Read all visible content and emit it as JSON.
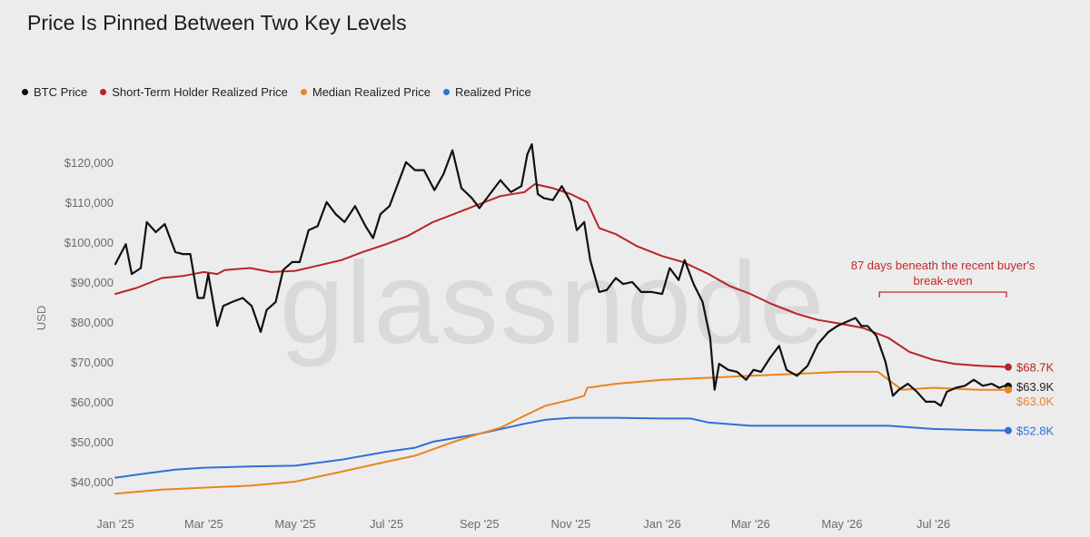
{
  "chart_data": {
    "type": "line",
    "title": "Price Is Pinned Between Two Key Levels",
    "ylabel": "USD",
    "xlabel": "",
    "ylim": [
      35000,
      127000
    ],
    "xlim": [
      "2025-01-01",
      "2026-08-20"
    ],
    "y_ticks": [
      40000,
      50000,
      60000,
      70000,
      80000,
      90000,
      100000,
      110000,
      120000
    ],
    "y_tick_labels": [
      "$40,000",
      "$50,000",
      "$60,000",
      "$70,000",
      "$80,000",
      "$90,000",
      "$100,000",
      "$110,000",
      "$120,000"
    ],
    "x_ticks": [
      {
        "date": "2025-01-01",
        "label": "Jan '25"
      },
      {
        "date": "2025-03-01",
        "label": "Mar '25"
      },
      {
        "date": "2025-05-01",
        "label": "May '25"
      },
      {
        "date": "2025-07-01",
        "label": "Jul '25"
      },
      {
        "date": "2025-09-01",
        "label": "Sep '25"
      },
      {
        "date": "2025-11-01",
        "label": "Nov '25"
      },
      {
        "date": "2026-01-01",
        "label": "Jan '26"
      },
      {
        "date": "2026-03-01",
        "label": "Mar '26"
      },
      {
        "date": "2026-05-01",
        "label": "May '26"
      },
      {
        "date": "2026-07-01",
        "label": "Jul '26"
      }
    ],
    "grid": false,
    "legend_position": "top-left",
    "series": [
      {
        "name": "BTC Price",
        "color": "#111111",
        "end_label": "$63.9K",
        "points": [
          [
            "2025-01-01",
            94500
          ],
          [
            "2025-01-08",
            99500
          ],
          [
            "2025-01-12",
            92000
          ],
          [
            "2025-01-18",
            93500
          ],
          [
            "2025-01-22",
            105000
          ],
          [
            "2025-01-28",
            102500
          ],
          [
            "2025-02-03",
            104500
          ],
          [
            "2025-02-10",
            97500
          ],
          [
            "2025-02-15",
            97000
          ],
          [
            "2025-02-20",
            97000
          ],
          [
            "2025-02-25",
            86000
          ],
          [
            "2025-03-01",
            86000
          ],
          [
            "2025-03-04",
            92000
          ],
          [
            "2025-03-10",
            79000
          ],
          [
            "2025-03-14",
            84000
          ],
          [
            "2025-03-20",
            85000
          ],
          [
            "2025-03-27",
            86000
          ],
          [
            "2025-04-02",
            84000
          ],
          [
            "2025-04-08",
            77500
          ],
          [
            "2025-04-12",
            83000
          ],
          [
            "2025-04-18",
            85000
          ],
          [
            "2025-04-23",
            93000
          ],
          [
            "2025-04-29",
            95000
          ],
          [
            "2025-05-04",
            95000
          ],
          [
            "2025-05-10",
            103000
          ],
          [
            "2025-05-16",
            104000
          ],
          [
            "2025-05-22",
            110000
          ],
          [
            "2025-05-28",
            107000
          ],
          [
            "2025-06-03",
            105000
          ],
          [
            "2025-06-10",
            109000
          ],
          [
            "2025-06-17",
            104000
          ],
          [
            "2025-06-22",
            101000
          ],
          [
            "2025-06-27",
            107000
          ],
          [
            "2025-07-03",
            109000
          ],
          [
            "2025-07-10",
            116000
          ],
          [
            "2025-07-14",
            120000
          ],
          [
            "2025-07-20",
            118000
          ],
          [
            "2025-07-26",
            118000
          ],
          [
            "2025-08-02",
            113000
          ],
          [
            "2025-08-08",
            117000
          ],
          [
            "2025-08-14",
            123000
          ],
          [
            "2025-08-20",
            113500
          ],
          [
            "2025-08-27",
            111000
          ],
          [
            "2025-09-01",
            108500
          ],
          [
            "2025-09-08",
            112000
          ],
          [
            "2025-09-15",
            115500
          ],
          [
            "2025-09-22",
            112500
          ],
          [
            "2025-09-29",
            114000
          ],
          [
            "2025-10-03",
            122000
          ],
          [
            "2025-10-06",
            124500
          ],
          [
            "2025-10-10",
            112000
          ],
          [
            "2025-10-14",
            111000
          ],
          [
            "2025-10-20",
            110500
          ],
          [
            "2025-10-26",
            114000
          ],
          [
            "2025-11-01",
            110000
          ],
          [
            "2025-11-05",
            103000
          ],
          [
            "2025-11-10",
            105000
          ],
          [
            "2025-11-14",
            95500
          ],
          [
            "2025-11-20",
            87500
          ],
          [
            "2025-11-25",
            88000
          ],
          [
            "2025-12-01",
            91000
          ],
          [
            "2025-12-06",
            89500
          ],
          [
            "2025-12-12",
            90000
          ],
          [
            "2025-12-18",
            87500
          ],
          [
            "2025-12-25",
            87500
          ],
          [
            "2026-01-01",
            87000
          ],
          [
            "2026-01-06",
            93500
          ],
          [
            "2026-01-12",
            90500
          ],
          [
            "2026-01-16",
            95500
          ],
          [
            "2026-01-22",
            89500
          ],
          [
            "2026-01-28",
            85000
          ],
          [
            "2026-02-02",
            76000
          ],
          [
            "2026-02-05",
            63000
          ],
          [
            "2026-02-08",
            69500
          ],
          [
            "2026-02-14",
            68000
          ],
          [
            "2026-02-20",
            67500
          ],
          [
            "2026-02-26",
            65500
          ],
          [
            "2026-03-03",
            68000
          ],
          [
            "2026-03-08",
            67500
          ],
          [
            "2026-03-14",
            71000
          ],
          [
            "2026-03-20",
            74000
          ],
          [
            "2026-03-25",
            68000
          ],
          [
            "2026-04-01",
            66500
          ],
          [
            "2026-04-08",
            69000
          ],
          [
            "2026-04-15",
            74500
          ],
          [
            "2026-04-22",
            77500
          ],
          [
            "2026-04-28",
            79000
          ],
          [
            "2026-05-04",
            80000
          ],
          [
            "2026-05-10",
            81000
          ],
          [
            "2026-05-14",
            79000
          ],
          [
            "2026-05-18",
            79000
          ],
          [
            "2026-05-24",
            76500
          ],
          [
            "2026-05-30",
            70000
          ],
          [
            "2026-06-04",
            61500
          ],
          [
            "2026-06-08",
            63000
          ],
          [
            "2026-06-14",
            64500
          ],
          [
            "2026-06-20",
            62500
          ],
          [
            "2026-06-26",
            60000
          ],
          [
            "2026-07-02",
            60000
          ],
          [
            "2026-07-06",
            59000
          ],
          [
            "2026-07-10",
            62500
          ],
          [
            "2026-07-16",
            63500
          ],
          [
            "2026-07-22",
            64000
          ],
          [
            "2026-07-28",
            65500
          ],
          [
            "2026-08-03",
            64000
          ],
          [
            "2026-08-09",
            64500
          ],
          [
            "2026-08-14",
            63500
          ],
          [
            "2026-08-19",
            64200
          ],
          [
            "2026-08-20",
            63900
          ]
        ]
      },
      {
        "name": "Short-Term Holder Realized Price",
        "color": "#b92323",
        "end_label": "$68.7K",
        "points": [
          [
            "2025-01-01",
            87000
          ],
          [
            "2025-01-15",
            88500
          ],
          [
            "2025-02-01",
            91000
          ],
          [
            "2025-02-15",
            91500
          ],
          [
            "2025-03-01",
            92500
          ],
          [
            "2025-03-10",
            92000
          ],
          [
            "2025-03-15",
            93000
          ],
          [
            "2025-04-01",
            93500
          ],
          [
            "2025-04-15",
            92500
          ],
          [
            "2025-05-01",
            92800
          ],
          [
            "2025-05-15",
            94000
          ],
          [
            "2025-06-01",
            95500
          ],
          [
            "2025-06-15",
            97500
          ],
          [
            "2025-07-01",
            99500
          ],
          [
            "2025-07-15",
            101500
          ],
          [
            "2025-08-01",
            105000
          ],
          [
            "2025-08-15",
            107000
          ],
          [
            "2025-09-01",
            109500
          ],
          [
            "2025-09-15",
            111500
          ],
          [
            "2025-10-01",
            112500
          ],
          [
            "2025-10-08",
            114500
          ],
          [
            "2025-10-20",
            113500
          ],
          [
            "2025-11-01",
            112000
          ],
          [
            "2025-11-12",
            110000
          ],
          [
            "2025-11-20",
            103500
          ],
          [
            "2025-12-01",
            102000
          ],
          [
            "2025-12-15",
            99000
          ],
          [
            "2026-01-01",
            96500
          ],
          [
            "2026-01-15",
            95000
          ],
          [
            "2026-02-01",
            92000
          ],
          [
            "2026-02-15",
            89000
          ],
          [
            "2026-03-01",
            87000
          ],
          [
            "2026-03-15",
            84500
          ],
          [
            "2026-04-01",
            82000
          ],
          [
            "2026-04-15",
            80500
          ],
          [
            "2026-05-01",
            79500
          ],
          [
            "2026-05-15",
            78500
          ],
          [
            "2026-06-01",
            76000
          ],
          [
            "2026-06-15",
            72500
          ],
          [
            "2026-07-01",
            70500
          ],
          [
            "2026-07-15",
            69500
          ],
          [
            "2026-08-01",
            69000
          ],
          [
            "2026-08-20",
            68700
          ]
        ]
      },
      {
        "name": "Median Realized Price",
        "color": "#e8861e",
        "end_label": "$63.0K",
        "points": [
          [
            "2025-01-01",
            37000
          ],
          [
            "2025-02-01",
            38000
          ],
          [
            "2025-03-01",
            38500
          ],
          [
            "2025-04-01",
            39000
          ],
          [
            "2025-05-01",
            40000
          ],
          [
            "2025-06-01",
            42500
          ],
          [
            "2025-07-01",
            45000
          ],
          [
            "2025-07-20",
            46500
          ],
          [
            "2025-08-15",
            50000
          ],
          [
            "2025-09-01",
            52000
          ],
          [
            "2025-09-15",
            53500
          ],
          [
            "2025-10-01",
            56500
          ],
          [
            "2025-10-15",
            59000
          ],
          [
            "2025-11-01",
            60500
          ],
          [
            "2025-11-10",
            61500
          ],
          [
            "2025-11-12",
            63500
          ],
          [
            "2025-12-01",
            64500
          ],
          [
            "2026-01-01",
            65500
          ],
          [
            "2026-02-01",
            66000
          ],
          [
            "2026-03-01",
            66500
          ],
          [
            "2026-04-01",
            67000
          ],
          [
            "2026-05-01",
            67500
          ],
          [
            "2026-05-25",
            67500
          ],
          [
            "2026-06-10",
            63000
          ],
          [
            "2026-07-01",
            63500
          ],
          [
            "2026-08-01",
            63000
          ],
          [
            "2026-08-20",
            63000
          ]
        ]
      },
      {
        "name": "Realized Price",
        "color": "#2f6fd6",
        "end_label": "$52.8K",
        "points": [
          [
            "2025-01-01",
            41000
          ],
          [
            "2025-01-20",
            42000
          ],
          [
            "2025-02-10",
            43000
          ],
          [
            "2025-03-01",
            43500
          ],
          [
            "2025-04-01",
            43800
          ],
          [
            "2025-05-01",
            44000
          ],
          [
            "2025-06-01",
            45500
          ],
          [
            "2025-07-01",
            47500
          ],
          [
            "2025-07-20",
            48500
          ],
          [
            "2025-08-01",
            50000
          ],
          [
            "2025-09-01",
            52000
          ],
          [
            "2025-10-01",
            54500
          ],
          [
            "2025-10-15",
            55500
          ],
          [
            "2025-11-01",
            56000
          ],
          [
            "2025-12-01",
            56000
          ],
          [
            "2026-01-01",
            55800
          ],
          [
            "2026-01-20",
            55800
          ],
          [
            "2026-02-01",
            54800
          ],
          [
            "2026-03-01",
            54000
          ],
          [
            "2026-04-01",
            54000
          ],
          [
            "2026-05-01",
            54000
          ],
          [
            "2026-06-01",
            54000
          ],
          [
            "2026-07-01",
            53200
          ],
          [
            "2026-08-01",
            52900
          ],
          [
            "2026-08-20",
            52800
          ]
        ]
      }
    ],
    "annotations": [
      {
        "text_line1": "87 days beneath the recent buyer's",
        "text_line2": "break-even",
        "color": "#c0282b",
        "from": "2026-05-26",
        "to": "2026-08-20"
      }
    ],
    "watermark": "glassnode"
  }
}
